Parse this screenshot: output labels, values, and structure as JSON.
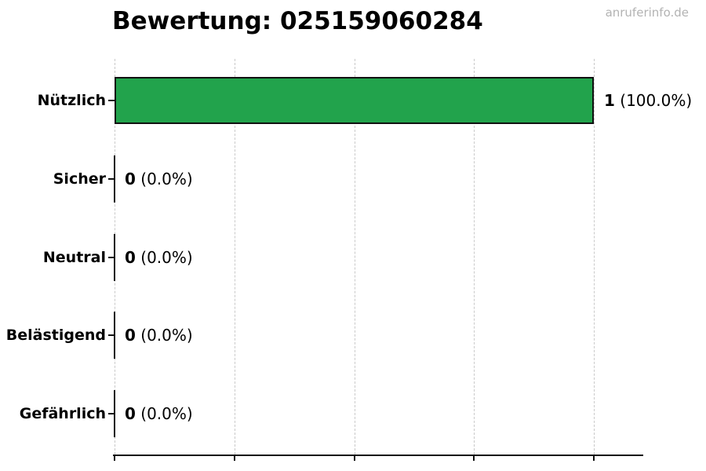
{
  "header": {
    "watermark": "anruferinfo.de"
  },
  "chart_data": {
    "type": "bar",
    "orientation": "horizontal",
    "title": "Bewertung: 025159060284",
    "categories": [
      "Nützlich",
      "Sicher",
      "Neutral",
      "Belästigend",
      "Gefährlich"
    ],
    "values": [
      1,
      0,
      0,
      0,
      0
    ],
    "percentages": [
      100.0,
      0.0,
      0.0,
      0.0,
      0.0
    ],
    "value_texts": [
      "1",
      "0",
      "0",
      "0",
      "0"
    ],
    "percent_texts": [
      "(100.0%)",
      "(0.0%)",
      "(0.0%)",
      "(0.0%)",
      "(0.0%)"
    ],
    "total_votes": 1,
    "xlabel": "",
    "ylabel": "",
    "xlim": [
      0,
      1.1
    ],
    "x_gridlines_at": [
      0,
      0.25,
      0.5,
      0.75,
      1.0
    ],
    "grid": "vertical-dashed",
    "legend_position": "none",
    "x_tick_labels": [],
    "colors": {
      "bar_fill": "#22a34c",
      "bar_edge": "#111111",
      "zero_bar": "#111111",
      "grid": "#c9c9c9",
      "axis": "#111111",
      "title": "#000000",
      "watermark": "#b3b3b3",
      "background": "#ffffff"
    }
  }
}
